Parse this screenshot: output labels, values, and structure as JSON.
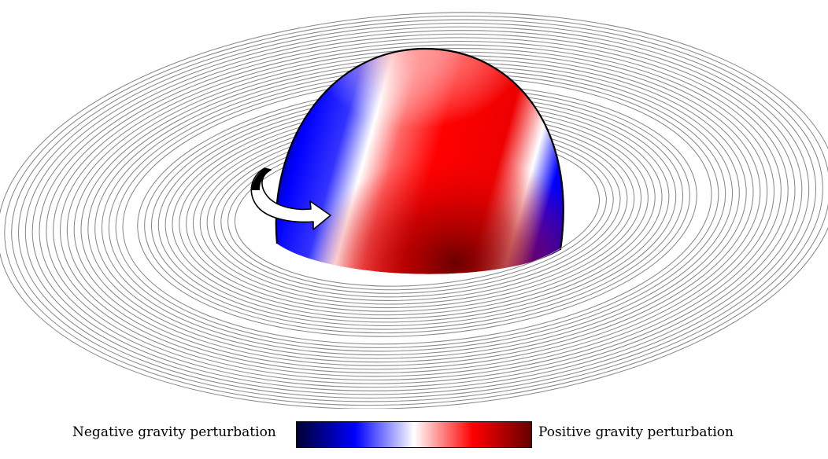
{
  "colorbar": {
    "negative_label": "Negative gravity perturbation",
    "positive_label": "Positive gravity perturbation",
    "colors": [
      "#000033",
      "#0000ff",
      "#ffffff",
      "#ff0000",
      "#660000"
    ]
  },
  "planet": {
    "colors": {
      "negative": "#0000ff",
      "neutral": "#ffffff",
      "positive": "#ff0000",
      "deep_positive": "#7a0000"
    }
  },
  "rings": {
    "color": "#888888"
  },
  "rotation_arrow": {
    "icon": "curved-rotation-arrow-icon"
  }
}
